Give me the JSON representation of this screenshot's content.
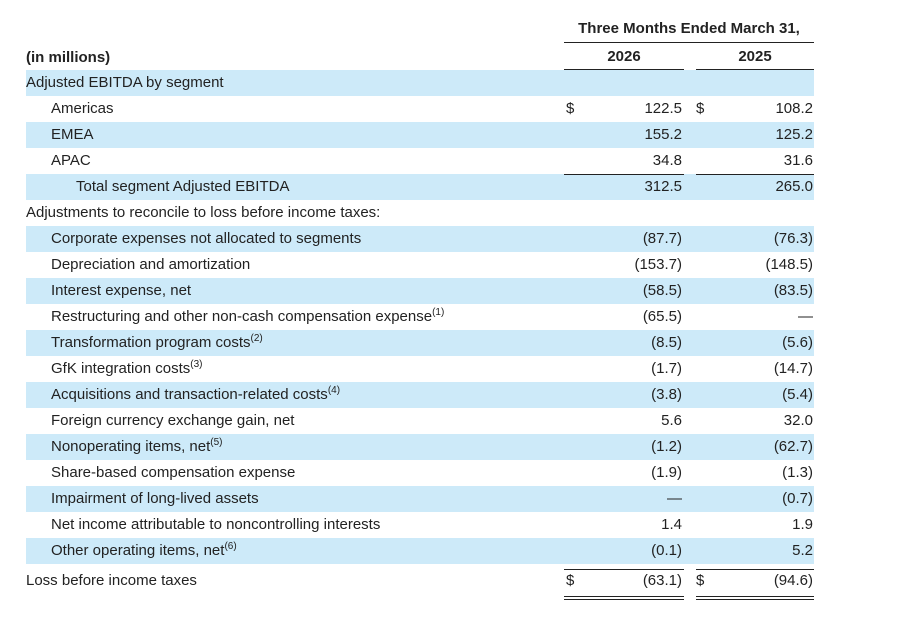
{
  "header": {
    "period": "Three Months Ended March 31,",
    "year_a": "2026",
    "year_b": "2025",
    "units": "(in millions)"
  },
  "rows": [
    {
      "label": "Adjusted EBITDA by segment",
      "sup": "",
      "cur": "",
      "a": "",
      "b": ""
    },
    {
      "label": "Americas",
      "sup": "",
      "cur": "$",
      "a": "122.5",
      "b": "108.2"
    },
    {
      "label": "EMEA",
      "sup": "",
      "cur": "",
      "a": "155.2",
      "b": "125.2"
    },
    {
      "label": "APAC",
      "sup": "",
      "cur": "",
      "a": "34.8",
      "b": "31.6"
    },
    {
      "label": "Total segment Adjusted EBITDA",
      "sup": "",
      "cur": "",
      "a": "312.5",
      "b": "265.0"
    },
    {
      "label": "Adjustments to reconcile to loss before income taxes:",
      "sup": "",
      "cur": "",
      "a": "",
      "b": ""
    },
    {
      "label": "Corporate expenses not allocated to segments",
      "sup": "",
      "cur": "",
      "a": "(87.7)",
      "b": "(76.3)"
    },
    {
      "label": "Depreciation and amortization",
      "sup": "",
      "cur": "",
      "a": "(153.7)",
      "b": "(148.5)"
    },
    {
      "label": "Interest expense, net",
      "sup": "",
      "cur": "",
      "a": "(58.5)",
      "b": "(83.5)"
    },
    {
      "label": "Restructuring and other non-cash compensation expense",
      "sup": "(1)",
      "cur": "",
      "a": "(65.5)",
      "b": "—"
    },
    {
      "label": "Transformation program costs",
      "sup": "(2)",
      "cur": "",
      "a": "(8.5)",
      "b": "(5.6)"
    },
    {
      "label": "GfK integration costs",
      "sup": "(3)",
      "cur": "",
      "a": "(1.7)",
      "b": "(14.7)"
    },
    {
      "label": "Acquisitions and transaction-related costs",
      "sup": "(4)",
      "cur": "",
      "a": "(3.8)",
      "b": "(5.4)"
    },
    {
      "label": "Foreign currency exchange gain, net",
      "sup": "",
      "cur": "",
      "a": "5.6",
      "b": "32.0"
    },
    {
      "label": "Nonoperating items, net",
      "sup": "(5)",
      "cur": "",
      "a": "(1.2)",
      "b": "(62.7)"
    },
    {
      "label": "Share-based compensation expense",
      "sup": "",
      "cur": "",
      "a": "(1.9)",
      "b": "(1.3)"
    },
    {
      "label": "Impairment of long-lived assets",
      "sup": "",
      "cur": "",
      "a": "—",
      "b": "(0.7)"
    },
    {
      "label": "Net income attributable to noncontrolling interests",
      "sup": "",
      "cur": "",
      "a": "1.4",
      "b": "1.9"
    },
    {
      "label": "Other operating items, net",
      "sup": "(6)",
      "cur": "",
      "a": "(0.1)",
      "b": "5.2"
    },
    {
      "label": "Loss before income taxes",
      "sup": "",
      "cur": "$",
      "a": "(63.1)",
      "b": "(94.6)"
    }
  ]
}
